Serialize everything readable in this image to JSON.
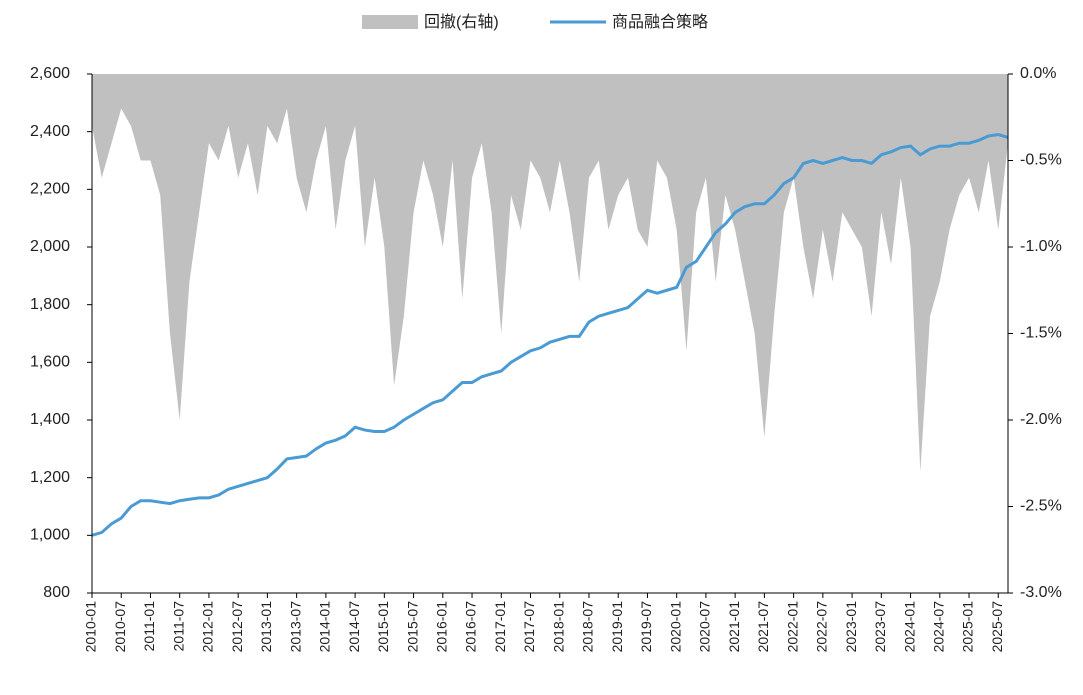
{
  "chart_data": {
    "type": "line-area",
    "categories": [
      "2010-01",
      null,
      null,
      "2010-07",
      null,
      null,
      "2011-01",
      null,
      null,
      "2011-07",
      null,
      null,
      "2012-01",
      null,
      null,
      "2012-07",
      null,
      null,
      "2013-01",
      null,
      null,
      "2013-07",
      null,
      null,
      "2014-01",
      null,
      null,
      "2014-07",
      null,
      null,
      "2015-01",
      null,
      null,
      "2015-07",
      null,
      null,
      "2016-01",
      null,
      null,
      "2016-07",
      null,
      null,
      "2017-01",
      null,
      null,
      "2017-07",
      null,
      null,
      "2018-01",
      null,
      null,
      "2018-07",
      null,
      null,
      "2019-01",
      null,
      null,
      "2019-07",
      null,
      null,
      "2020-01",
      null,
      null,
      "2020-07",
      null,
      null,
      "2021-01",
      null,
      null,
      "2021-07",
      null,
      null,
      "2022-01",
      null,
      null,
      "2022-07",
      null,
      null,
      "2023-01",
      null,
      null,
      "2023-07",
      null,
      null,
      "2024-01",
      null,
      null,
      "2024-07",
      null,
      null,
      "2025-01",
      null,
      null,
      "2025-07",
      null
    ],
    "series": [
      {
        "name": "回撤(右轴)",
        "color": "#c0c0c0",
        "axis": "y2",
        "kind": "area",
        "values": [
          -0.3,
          -0.6,
          -0.4,
          -0.2,
          -0.3,
          -0.5,
          -0.5,
          -0.7,
          -1.5,
          -2.0,
          -1.2,
          -0.8,
          -0.4,
          -0.5,
          -0.3,
          -0.6,
          -0.4,
          -0.7,
          -0.3,
          -0.4,
          -0.2,
          -0.6,
          -0.8,
          -0.5,
          -0.3,
          -0.9,
          -0.5,
          -0.3,
          -1.0,
          -0.6,
          -1.0,
          -1.8,
          -1.4,
          -0.8,
          -0.5,
          -0.7,
          -1.0,
          -0.5,
          -1.3,
          -0.6,
          -0.4,
          -0.8,
          -1.5,
          -0.7,
          -0.9,
          -0.5,
          -0.6,
          -0.8,
          -0.5,
          -0.8,
          -1.2,
          -0.6,
          -0.5,
          -0.9,
          -0.7,
          -0.6,
          -0.9,
          -1.0,
          -0.5,
          -0.6,
          -0.9,
          -1.6,
          -0.8,
          -0.6,
          -1.2,
          -0.7,
          -0.9,
          -1.2,
          -1.5,
          -2.1,
          -1.4,
          -0.8,
          -0.6,
          -1.0,
          -1.3,
          -0.9,
          -1.2,
          -0.8,
          -0.9,
          -1.0,
          -1.4,
          -0.8,
          -1.1,
          -0.6,
          -1.0,
          -2.3,
          -1.4,
          -1.2,
          -0.9,
          -0.7,
          -0.6,
          -0.8,
          -0.5,
          -0.9,
          -0.4
        ]
      },
      {
        "name": "商品融合策略",
        "color": "#4a9ad4",
        "kind": "line",
        "values": [
          1000,
          1010,
          1040,
          1060,
          1100,
          1120,
          1120,
          1115,
          1110,
          1120,
          1125,
          1130,
          1130,
          1140,
          1160,
          1170,
          1180,
          1190,
          1200,
          1230,
          1265,
          1270,
          1275,
          1300,
          1320,
          1330,
          1345,
          1375,
          1365,
          1360,
          1360,
          1375,
          1400,
          1420,
          1440,
          1460,
          1470,
          1500,
          1530,
          1530,
          1550,
          1560,
          1570,
          1600,
          1620,
          1640,
          1650,
          1670,
          1680,
          1690,
          1690,
          1740,
          1760,
          1770,
          1780,
          1790,
          1820,
          1850,
          1840,
          1850,
          1860,
          1930,
          1950,
          2000,
          2050,
          2080,
          2120,
          2140,
          2150,
          2150,
          2180,
          2220,
          2240,
          2290,
          2300,
          2290,
          2300,
          2310,
          2300,
          2300,
          2290,
          2320,
          2330,
          2345,
          2350,
          2320,
          2340,
          2350,
          2350,
          2360,
          2360,
          2370,
          2385,
          2390,
          2380
        ]
      }
    ],
    "ylim": [
      800,
      2600
    ],
    "yticks": [
      800,
      {
        "value": 1000,
        "label": "1,000"
      },
      {
        "value": 1200,
        "label": "1,200"
      },
      {
        "value": 1400,
        "label": "1,400"
      },
      {
        "value": 1600,
        "label": "1,600"
      },
      {
        "value": 1800,
        "label": "1,800"
      },
      {
        "value": 2000,
        "label": "2,000"
      },
      {
        "value": 2200,
        "label": "2,200"
      },
      {
        "value": 2400,
        "label": "2,400"
      },
      {
        "value": 2600,
        "label": "2,600"
      }
    ],
    "y2lim": [
      -3.0,
      0.0
    ],
    "y2ticks": [
      {
        "value": 0,
        "label": "0.0%"
      },
      {
        "value": -0.5,
        "label": "-0.5%"
      },
      {
        "value": -1.0,
        "label": "-1.0%"
      },
      {
        "value": -1.5,
        "label": "-1.5%"
      },
      {
        "value": -2.0,
        "label": "-2.0%"
      },
      {
        "value": -2.5,
        "label": "-2.5%"
      },
      {
        "value": -3.0,
        "label": "-3.0%"
      }
    ],
    "legend": "top"
  }
}
